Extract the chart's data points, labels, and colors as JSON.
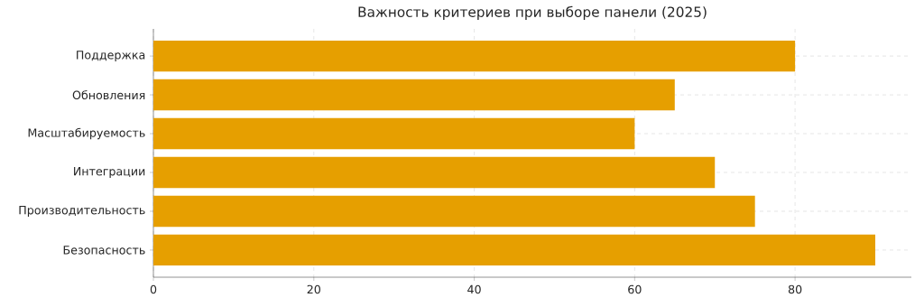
{
  "chart_data": {
    "type": "bar",
    "orientation": "horizontal",
    "title": "Важность критериев при выборе панели (2025)",
    "categories": [
      "Поддержка",
      "Обновления",
      "Масштабируемость",
      "Интеграции",
      "Производительность",
      "Безопасность"
    ],
    "values": [
      80,
      65,
      60,
      70,
      75,
      90
    ],
    "color": "#e69f00",
    "xlim": [
      0,
      94.5
    ],
    "xticks": [
      0,
      20,
      40,
      60,
      80
    ],
    "grid": true
  }
}
